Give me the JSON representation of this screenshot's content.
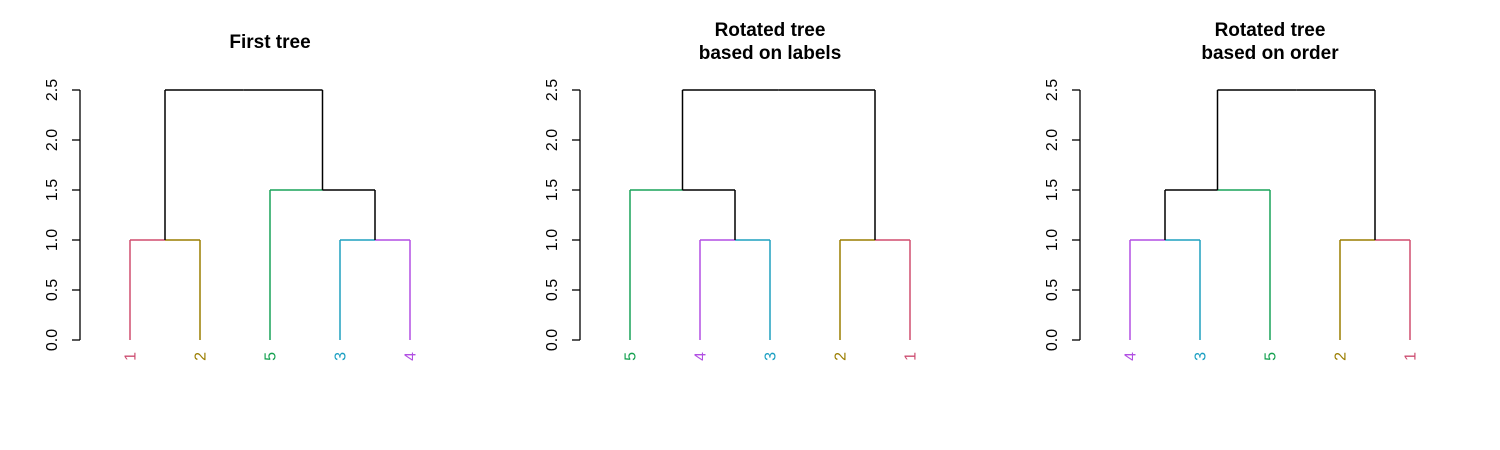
{
  "chart_data": [
    {
      "type": "dendrogram",
      "title": [
        "First tree"
      ],
      "ylim": [
        0,
        2.5
      ],
      "yticks": [
        "0.0",
        "0.5",
        "1.0",
        "1.5",
        "2.0",
        "2.5"
      ],
      "leaves": [
        "1",
        "2",
        "5",
        "3",
        "4"
      ],
      "merges": [
        {
          "left": [
            0
          ],
          "right": [
            1
          ],
          "height": 1.0,
          "color": "#d14d6f"
        },
        {
          "left": [
            3
          ],
          "right": [
            4
          ],
          "height": 1.0,
          "color": "#1fa0bf"
        },
        {
          "left": [
            2
          ],
          "right": [
            3,
            4
          ],
          "height": 1.5,
          "color": "#19a35a"
        },
        {
          "left": [
            0,
            1
          ],
          "right": [
            2,
            3,
            4
          ],
          "height": 2.5,
          "color": "#000000"
        }
      ]
    },
    {
      "type": "dendrogram",
      "title": [
        "Rotated tree",
        "based on labels"
      ],
      "ylim": [
        0,
        2.5
      ],
      "yticks": [
        "0.0",
        "0.5",
        "1.0",
        "1.5",
        "2.0",
        "2.5"
      ],
      "leaves": [
        "5",
        "4",
        "3",
        "2",
        "1"
      ],
      "merges": [
        {
          "left": [
            1
          ],
          "right": [
            2
          ],
          "height": 1.0,
          "color": "#1fa0bf"
        },
        {
          "left": [
            0
          ],
          "right": [
            1,
            2
          ],
          "height": 1.5,
          "color": "#19a35a"
        },
        {
          "left": [
            3
          ],
          "right": [
            4
          ],
          "height": 1.0,
          "color": "#d14d6f"
        },
        {
          "left": [
            0,
            1,
            2
          ],
          "right": [
            3,
            4
          ],
          "height": 2.5,
          "color": "#000000"
        }
      ]
    },
    {
      "type": "dendrogram",
      "title": [
        "Rotated tree",
        "based on order"
      ],
      "ylim": [
        0,
        2.5
      ],
      "yticks": [
        "0.0",
        "0.5",
        "1.0",
        "1.5",
        "2.0",
        "2.5"
      ],
      "leaves": [
        "4",
        "3",
        "5",
        "2",
        "1"
      ],
      "merges": [
        {
          "left": [
            0
          ],
          "right": [
            1
          ],
          "height": 1.0,
          "color": "#1fa0bf"
        },
        {
          "left": [
            0,
            1
          ],
          "right": [
            2
          ],
          "height": 1.5,
          "color": "#19a35a"
        },
        {
          "left": [
            3
          ],
          "right": [
            4
          ],
          "height": 1.0,
          "color": "#d14d6f"
        },
        {
          "left": [
            0,
            1,
            2
          ],
          "right": [
            3,
            4
          ],
          "height": 2.5,
          "color": "#000000"
        }
      ]
    }
  ],
  "leaf_colors": {
    "1": "#cc4c70",
    "2": "#9a7d00",
    "3": "#1a9fc2",
    "4": "#b24fe3",
    "5": "#13a04f"
  },
  "branch_colors": {
    "1": "#d14d6f",
    "2": "#9a7d00",
    "3": "#1fa0bf",
    "4": "#b24fe3",
    "5": "#19a35a"
  }
}
